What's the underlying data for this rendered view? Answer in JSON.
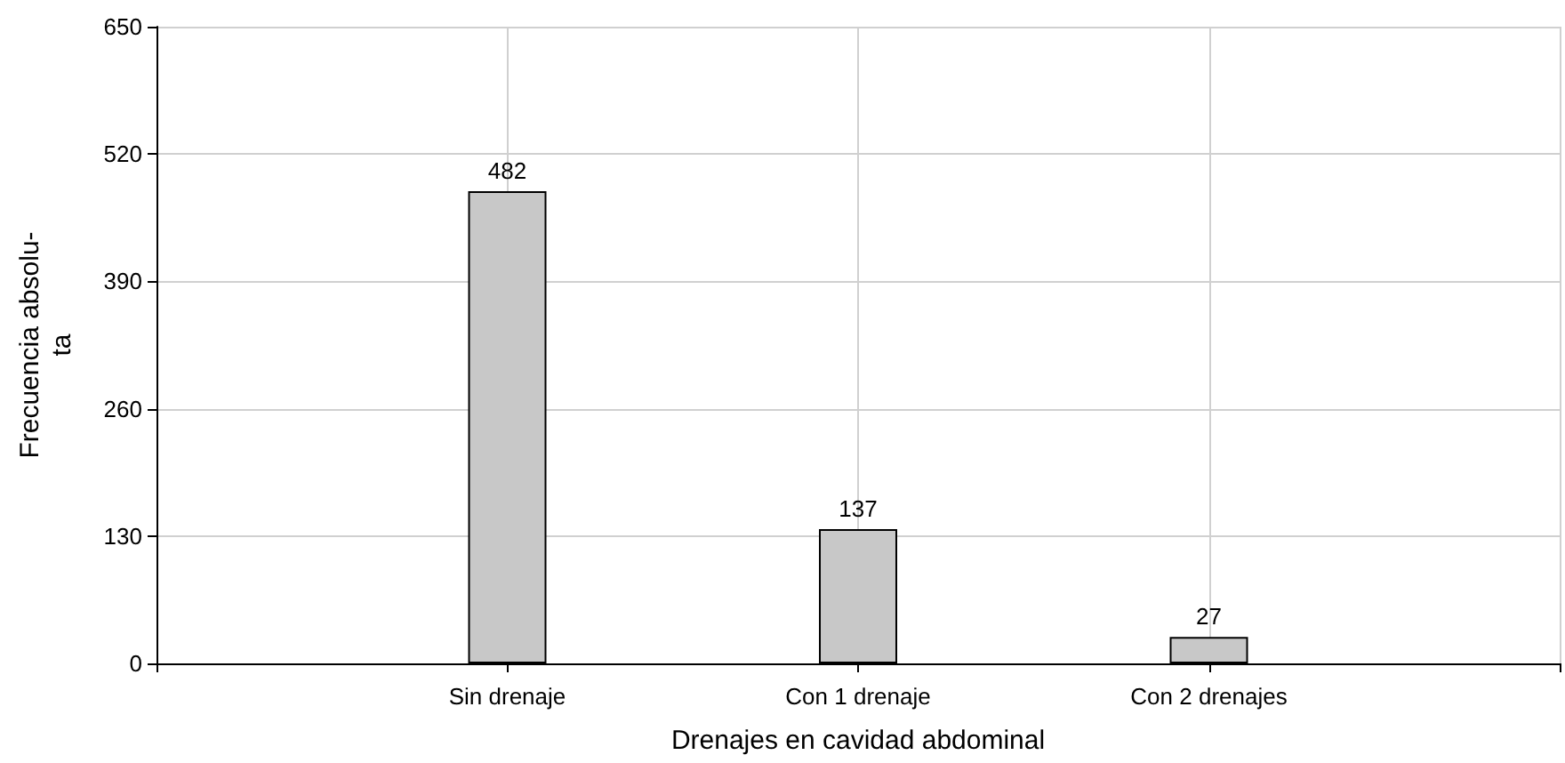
{
  "chart_data": {
    "type": "bar",
    "xlabel": "Drenajes en cavidad abdominal",
    "ylabel": "Frecuencia absolu-\nta",
    "categories": [
      "Sin drenaje",
      "Con 1 drenaje",
      "Con 2 drenajes"
    ],
    "values": [
      482,
      137,
      27
    ],
    "color": "#c8c8c8",
    "ylim": [
      0,
      650
    ],
    "yticks": [
      0,
      130,
      260,
      390,
      520,
      650
    ],
    "grid": true,
    "data_labels": true
  }
}
